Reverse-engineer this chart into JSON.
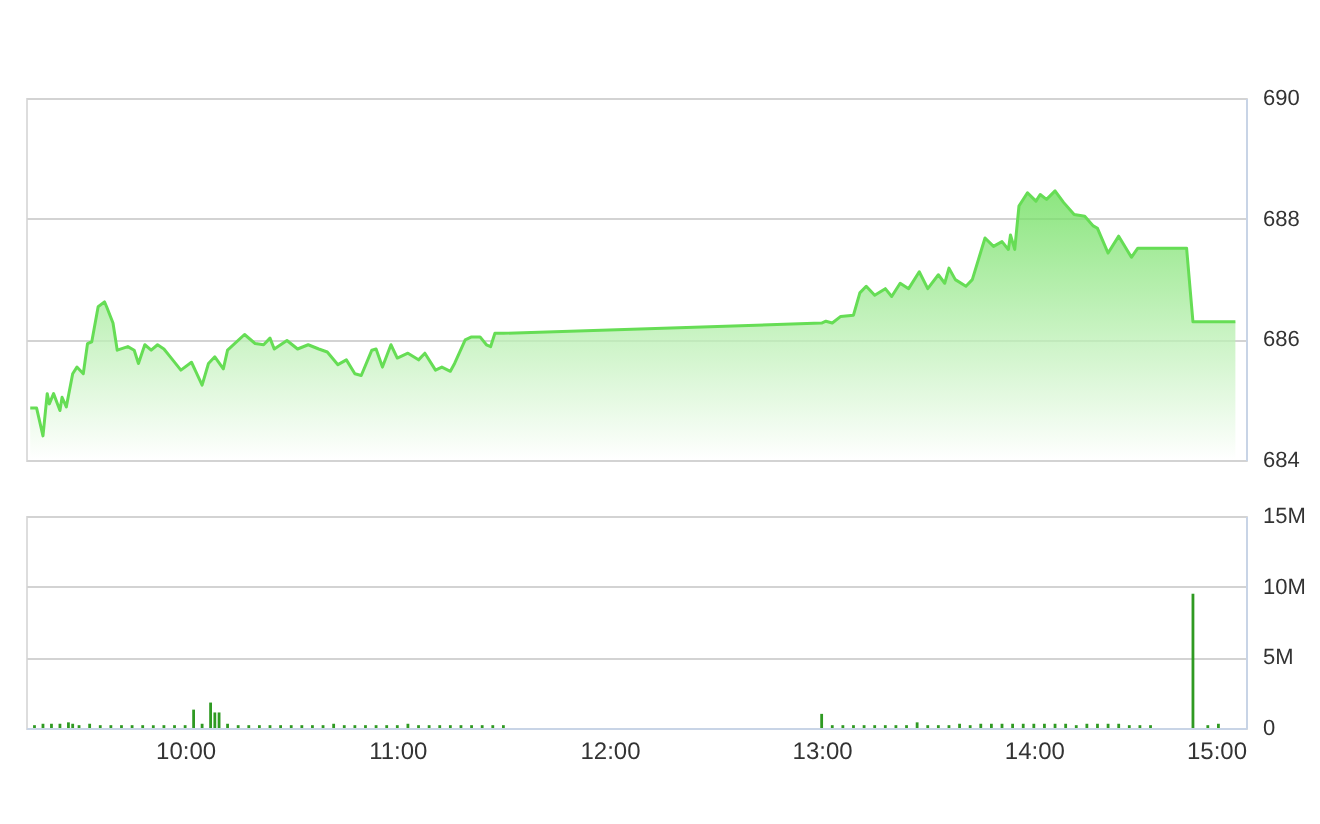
{
  "chart_data": [
    {
      "type": "area",
      "xlim": [
        9.25,
        15
      ],
      "ylim": [
        684,
        690
      ],
      "yticks": [
        684,
        686,
        688,
        690
      ],
      "grid": "y",
      "tick_labels": "y",
      "series": [
        {
          "color": "#66dd55",
          "x": [
            9.27,
            9.3,
            9.33,
            9.35,
            9.36,
            9.38,
            9.41,
            9.42,
            9.44,
            9.47,
            9.49,
            9.52,
            9.54,
            9.56,
            9.59,
            9.62,
            9.63,
            9.66,
            9.68,
            9.73,
            9.76,
            9.78,
            9.81,
            9.84,
            9.87,
            9.9,
            9.93,
            9.98,
            10.03,
            10.05,
            10.08,
            10.11,
            10.14,
            10.18,
            10.2,
            10.28,
            10.33,
            10.37,
            10.4,
            10.42,
            10.48,
            10.53,
            10.58,
            10.63,
            10.67,
            10.72,
            10.76,
            10.8,
            10.83,
            10.88,
            10.9,
            10.93,
            10.97,
            11.0,
            11.05,
            11.1,
            11.13,
            11.18,
            11.21,
            11.25,
            11.27,
            11.32,
            11.35,
            11.39,
            11.42,
            11.44,
            11.46,
            11.5,
            13.0,
            13.02,
            13.05,
            13.09,
            13.15,
            13.18,
            13.21,
            13.25,
            13.3,
            13.33,
            13.37,
            13.41,
            13.46,
            13.5,
            13.55,
            13.58,
            13.6,
            13.63,
            13.68,
            13.71,
            13.77,
            13.81,
            13.85,
            13.88,
            13.89,
            13.91,
            13.93,
            13.97,
            14.01,
            14.03,
            14.06,
            14.1,
            14.14,
            14.19,
            14.24,
            14.28,
            14.3,
            14.35,
            14.4,
            14.46,
            14.49,
            14.72,
            14.75,
            14.95
          ],
          "values": [
            684.86,
            684.86,
            684.4,
            685.1,
            684.93,
            685.1,
            684.82,
            685.04,
            684.88,
            685.43,
            685.54,
            685.43,
            685.93,
            685.96,
            686.54,
            686.62,
            686.54,
            686.27,
            685.82,
            685.88,
            685.82,
            685.6,
            685.91,
            685.82,
            685.91,
            685.84,
            685.71,
            685.49,
            685.62,
            685.47,
            685.24,
            685.6,
            685.71,
            685.51,
            685.82,
            686.08,
            685.93,
            685.91,
            686.02,
            685.84,
            685.98,
            685.84,
            685.91,
            685.84,
            685.79,
            685.58,
            685.66,
            685.43,
            685.4,
            685.82,
            685.84,
            685.54,
            685.91,
            685.69,
            685.77,
            685.66,
            685.77,
            685.49,
            685.54,
            685.47,
            685.6,
            685.99,
            686.04,
            686.04,
            685.91,
            685.88,
            686.1,
            686.1,
            686.27,
            686.3,
            686.27,
            686.38,
            686.4,
            686.77,
            686.88,
            686.73,
            686.84,
            686.71,
            686.93,
            686.84,
            687.12,
            686.84,
            687.07,
            686.93,
            687.18,
            686.99,
            686.88,
            686.99,
            687.68,
            687.54,
            687.62,
            687.49,
            687.73,
            687.49,
            688.21,
            688.43,
            688.29,
            688.4,
            688.32,
            688.46,
            688.27,
            688.07,
            688.04,
            687.88,
            687.84,
            687.43,
            687.71,
            687.36,
            687.51,
            687.51,
            686.29,
            686.29
          ]
        }
      ]
    },
    {
      "type": "bar",
      "xlim": [
        9.25,
        15
      ],
      "xticks": [
        {
          "value": 10,
          "label": "10:00"
        },
        {
          "value": 11,
          "label": "11:00"
        },
        {
          "value": 12,
          "label": "12:00"
        },
        {
          "value": 13,
          "label": "13:00"
        },
        {
          "value": 14,
          "label": "14:00"
        },
        {
          "value": 15,
          "label": "15:00"
        }
      ],
      "ylim": [
        0,
        15000000
      ],
      "yticks": [
        0,
        {
          "value": 5000000,
          "label": "5M"
        },
        {
          "value": 10000000,
          "label": "10M"
        },
        {
          "value": 15000000,
          "label": "15M"
        }
      ],
      "grid": "y",
      "series": [
        {
          "color": "#2f9a22",
          "x": [
            9.29,
            9.33,
            9.37,
            9.41,
            9.45,
            9.47,
            9.5,
            9.55,
            9.6,
            9.65,
            9.7,
            9.75,
            9.8,
            9.85,
            9.9,
            9.95,
            10.0,
            10.04,
            10.08,
            10.12,
            10.14,
            10.16,
            10.2,
            10.25,
            10.3,
            10.35,
            10.4,
            10.45,
            10.5,
            10.55,
            10.6,
            10.65,
            10.7,
            10.75,
            10.8,
            10.85,
            10.9,
            10.95,
            11.0,
            11.05,
            11.1,
            11.15,
            11.2,
            11.25,
            11.3,
            11.35,
            11.4,
            11.45,
            11.5,
            13.0,
            13.05,
            13.1,
            13.15,
            13.2,
            13.25,
            13.3,
            13.35,
            13.4,
            13.45,
            13.5,
            13.55,
            13.6,
            13.65,
            13.7,
            13.75,
            13.8,
            13.85,
            13.9,
            13.95,
            14.0,
            14.05,
            14.1,
            14.15,
            14.2,
            14.25,
            14.3,
            14.35,
            14.4,
            14.45,
            14.5,
            14.55,
            14.75,
            14.82,
            14.87
          ],
          "values": [
            200000,
            300000,
            300000,
            300000,
            400000,
            300000,
            200000,
            300000,
            200000,
            200000,
            200000,
            200000,
            200000,
            200000,
            200000,
            200000,
            200000,
            1300000,
            300000,
            1800000,
            1100000,
            1100000,
            300000,
            200000,
            200000,
            200000,
            200000,
            200000,
            200000,
            200000,
            200000,
            200000,
            300000,
            200000,
            200000,
            200000,
            200000,
            200000,
            200000,
            300000,
            200000,
            200000,
            200000,
            200000,
            200000,
            200000,
            200000,
            200000,
            200000,
            1000000,
            200000,
            200000,
            200000,
            200000,
            200000,
            200000,
            200000,
            200000,
            400000,
            200000,
            200000,
            200000,
            300000,
            200000,
            300000,
            300000,
            300000,
            300000,
            300000,
            300000,
            300000,
            300000,
            300000,
            200000,
            300000,
            300000,
            300000,
            300000,
            200000,
            200000,
            200000,
            9500000,
            200000,
            300000
          ]
        }
      ]
    }
  ]
}
